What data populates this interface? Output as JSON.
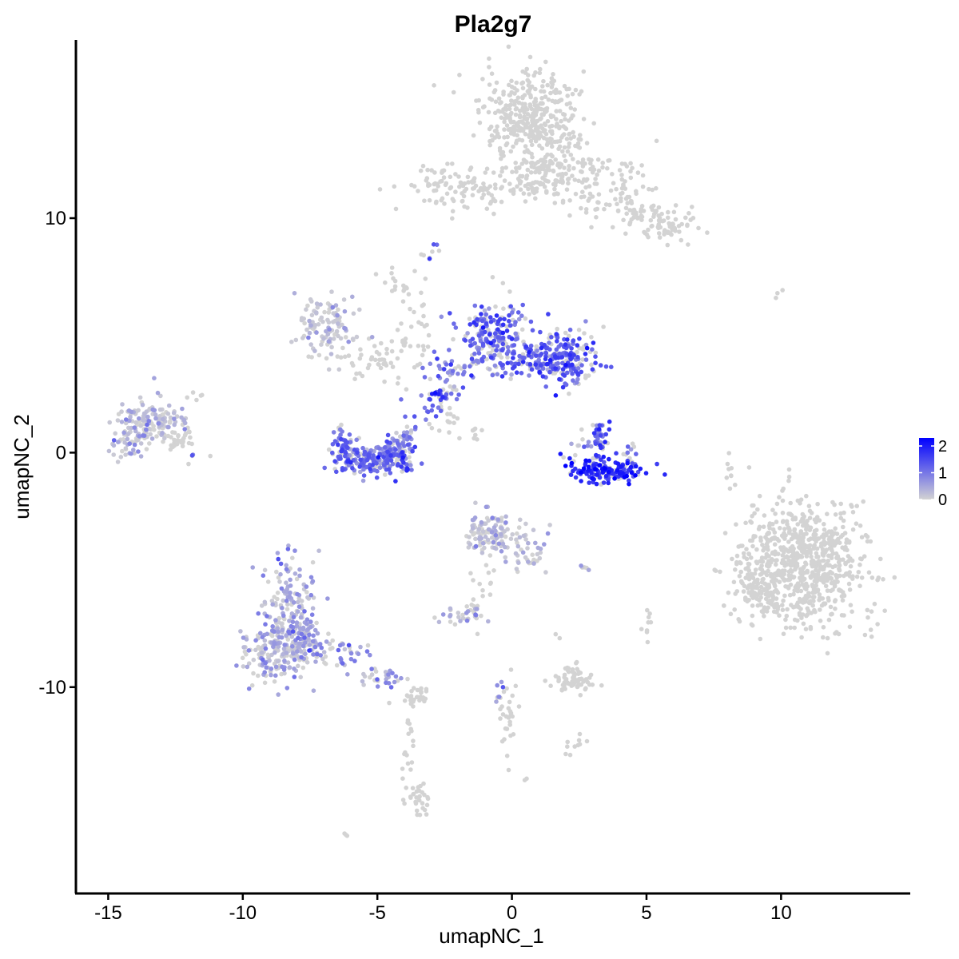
{
  "chart_data": {
    "type": "scatter",
    "title": "Pla2g7",
    "xlabel": "umapNC_1",
    "ylabel": "umapNC_2",
    "xlim": [
      -16.2,
      14.8
    ],
    "ylim": [
      -18.8,
      17.6
    ],
    "xticks": [
      -15,
      -10,
      -5,
      0,
      5,
      10
    ],
    "xtick_labels": [
      "-15",
      "-10",
      "-5",
      "0",
      "5",
      "10"
    ],
    "yticks": [
      -10,
      0,
      10
    ],
    "ytick_labels": [
      "-10",
      "0",
      "10"
    ],
    "grid": false,
    "legend": {
      "placement": "right",
      "type": "colorbar",
      "range": [
        0,
        2.3
      ],
      "ticks": [
        0,
        1,
        2
      ],
      "tick_labels": [
        "0",
        "1",
        "2"
      ],
      "low_color": "#d3d3d3",
      "high_color": "#0000ff"
    },
    "clusters": [
      {
        "cx": 0.7,
        "cy": 14.2,
        "sx": 0.9,
        "sy": 1.0,
        "n": 380,
        "expr": 0.0
      },
      {
        "cx": 2.4,
        "cy": 11.9,
        "sx": 1.2,
        "sy": 0.5,
        "n": 120,
        "expr": 0.0
      },
      {
        "cx": 4.3,
        "cy": 10.5,
        "sx": 1.1,
        "sy": 0.6,
        "n": 90,
        "expr": 0.0
      },
      {
        "cx": 5.8,
        "cy": 9.6,
        "sx": 0.4,
        "sy": 0.3,
        "n": 50,
        "expr": 0.0
      },
      {
        "cx": -2.0,
        "cy": 11.3,
        "sx": 1.0,
        "sy": 0.45,
        "n": 110,
        "expr": 0.0
      },
      {
        "cx": 0.8,
        "cy": 11.3,
        "sx": 0.8,
        "sy": 0.3,
        "n": 45,
        "expr": 0.0
      },
      {
        "cx": 0.9,
        "cy": 12.7,
        "sx": 0.3,
        "sy": 0.9,
        "n": 30,
        "expr": 0.0
      },
      {
        "cx": -2.9,
        "cy": 8.6,
        "sx": 0.15,
        "sy": 0.2,
        "n": 6,
        "expr": 1.7
      },
      {
        "cx": -6.8,
        "cy": 5.5,
        "sx": 0.55,
        "sy": 0.6,
        "n": 110,
        "expr": 0.1
      },
      {
        "cx": -5.0,
        "cy": 4.0,
        "sx": 1.0,
        "sy": 0.4,
        "n": 50,
        "expr": 0.0
      },
      {
        "cx": -3.6,
        "cy": 5.3,
        "sx": 0.4,
        "sy": 1.3,
        "n": 35,
        "expr": 0.0
      },
      {
        "cx": -4.4,
        "cy": 7.2,
        "sx": 0.25,
        "sy": 0.4,
        "n": 12,
        "expr": 0.0
      },
      {
        "cx": -0.7,
        "cy": 5.1,
        "sx": 0.65,
        "sy": 0.75,
        "n": 190,
        "expr": 1.2
      },
      {
        "cx": 0.8,
        "cy": 4.1,
        "sx": 0.9,
        "sy": 0.45,
        "n": 110,
        "expr": 1.2
      },
      {
        "cx": 2.1,
        "cy": 4.0,
        "sx": 0.6,
        "sy": 0.55,
        "n": 170,
        "expr": 1.3
      },
      {
        "cx": -2.1,
        "cy": 3.5,
        "sx": 0.55,
        "sy": 0.4,
        "n": 40,
        "expr": 1.0
      },
      {
        "cx": -2.6,
        "cy": 2.4,
        "sx": 0.3,
        "sy": 0.3,
        "n": 30,
        "expr": 1.3
      },
      {
        "cx": -3.2,
        "cy": 1.8,
        "sx": 0.4,
        "sy": 0.3,
        "n": 15,
        "expr": 1.0
      },
      {
        "cx": -2.2,
        "cy": 1.2,
        "sx": 0.35,
        "sy": 0.3,
        "n": 12,
        "expr": 0.0
      },
      {
        "cx": -1.4,
        "cy": 0.8,
        "sx": 0.25,
        "sy": 0.2,
        "n": 8,
        "expr": 0.0
      },
      {
        "cx": -6.2,
        "cy": 0.3,
        "sx": 0.25,
        "sy": 0.45,
        "n": 45,
        "expr": 1.3
      },
      {
        "cx": -5.4,
        "cy": -0.3,
        "sx": 0.7,
        "sy": 0.35,
        "n": 150,
        "expr": 1.1
      },
      {
        "cx": -4.3,
        "cy": 0.0,
        "sx": 0.35,
        "sy": 0.4,
        "n": 90,
        "expr": 1.1
      },
      {
        "cx": -3.9,
        "cy": 0.7,
        "sx": 0.2,
        "sy": 0.3,
        "n": 20,
        "expr": 0.8
      },
      {
        "cx": 3.6,
        "cy": -0.8,
        "sx": 0.55,
        "sy": 0.25,
        "n": 140,
        "expr": 1.8
      },
      {
        "cx": 2.6,
        "cy": -0.6,
        "sx": 0.3,
        "sy": 0.2,
        "n": 20,
        "expr": 2.0
      },
      {
        "cx": 3.3,
        "cy": 0.7,
        "sx": 0.18,
        "sy": 0.45,
        "n": 40,
        "expr": 1.4
      },
      {
        "cx": 2.6,
        "cy": 0.3,
        "sx": 0.25,
        "sy": 0.25,
        "n": 10,
        "expr": 0.8
      },
      {
        "cx": 4.4,
        "cy": 0.1,
        "sx": 0.15,
        "sy": 0.3,
        "n": 8,
        "expr": 1.0
      },
      {
        "cx": 2.0,
        "cy": -0.2,
        "sx": 0.15,
        "sy": 0.1,
        "n": 4,
        "expr": 1.8
      },
      {
        "cx": -13.4,
        "cy": 1.4,
        "sx": 0.6,
        "sy": 0.45,
        "n": 130,
        "expr": 0.2
      },
      {
        "cx": -14.2,
        "cy": 0.4,
        "sx": 0.35,
        "sy": 0.4,
        "n": 50,
        "expr": 0.3
      },
      {
        "cx": -12.4,
        "cy": 0.5,
        "sx": 0.35,
        "sy": 0.35,
        "n": 35,
        "expr": 0.0
      },
      {
        "cx": -11.9,
        "cy": -0.1,
        "sx": 0.05,
        "sy": 0.05,
        "n": 3,
        "expr": 1.0
      },
      {
        "cx": -11.7,
        "cy": 2.5,
        "sx": 0.2,
        "sy": 0.15,
        "n": 5,
        "expr": 0.0
      },
      {
        "cx": 10.8,
        "cy": -4.8,
        "sx": 1.25,
        "sy": 1.35,
        "n": 750,
        "expr": 0.0
      },
      {
        "cx": 9.0,
        "cy": -5.8,
        "sx": 0.45,
        "sy": 0.6,
        "n": 80,
        "expr": 0.0
      },
      {
        "cx": 8.1,
        "cy": -0.8,
        "sx": 0.1,
        "sy": 0.5,
        "n": 8,
        "expr": 0.0
      },
      {
        "cx": 9.8,
        "cy": 6.8,
        "sx": 0.2,
        "sy": 0.1,
        "n": 3,
        "expr": 0.0
      },
      {
        "cx": -0.7,
        "cy": -3.5,
        "sx": 0.5,
        "sy": 0.5,
        "n": 110,
        "expr": 0.2
      },
      {
        "cx": 0.6,
        "cy": -4.3,
        "sx": 0.4,
        "sy": 0.55,
        "n": 35,
        "expr": 0.2
      },
      {
        "cx": -1.1,
        "cy": -5.5,
        "sx": 0.3,
        "sy": 0.9,
        "n": 20,
        "expr": 0.0
      },
      {
        "cx": -1.9,
        "cy": -7.0,
        "sx": 0.45,
        "sy": 0.2,
        "n": 30,
        "expr": 0.4
      },
      {
        "cx": 2.8,
        "cy": -4.9,
        "sx": 0.2,
        "sy": 0.1,
        "n": 5,
        "expr": 0.3
      },
      {
        "cx": 5.0,
        "cy": -7.5,
        "sx": 0.1,
        "sy": 0.3,
        "n": 6,
        "expr": 0.0
      },
      {
        "cx": -8.2,
        "cy": -7.0,
        "sx": 0.55,
        "sy": 1.2,
        "n": 220,
        "expr": 0.4
      },
      {
        "cx": -9.1,
        "cy": -8.6,
        "sx": 0.55,
        "sy": 0.55,
        "n": 110,
        "expr": 0.3
      },
      {
        "cx": -7.8,
        "cy": -8.0,
        "sx": 0.45,
        "sy": 0.5,
        "n": 70,
        "expr": 0.3
      },
      {
        "cx": -6.2,
        "cy": -8.6,
        "sx": 0.65,
        "sy": 0.35,
        "n": 35,
        "expr": 0.6
      },
      {
        "cx": -4.7,
        "cy": -9.6,
        "sx": 0.55,
        "sy": 0.25,
        "n": 30,
        "expr": 0.5
      },
      {
        "cx": -3.6,
        "cy": -10.3,
        "sx": 0.3,
        "sy": 0.2,
        "n": 25,
        "expr": 0.0
      },
      {
        "cx": -3.8,
        "cy": -12.2,
        "sx": 0.12,
        "sy": 1.2,
        "n": 20,
        "expr": 0.0
      },
      {
        "cx": -3.4,
        "cy": -14.8,
        "sx": 0.3,
        "sy": 0.5,
        "n": 30,
        "expr": 0.0
      },
      {
        "cx": -6.1,
        "cy": -16.3,
        "sx": 0.08,
        "sy": 0.05,
        "n": 3,
        "expr": 0.0
      },
      {
        "cx": 2.3,
        "cy": -9.8,
        "sx": 0.45,
        "sy": 0.2,
        "n": 60,
        "expr": 0.0
      },
      {
        "cx": 2.1,
        "cy": -9.2,
        "sx": 0.25,
        "sy": 0.15,
        "n": 10,
        "expr": 0.0
      },
      {
        "cx": -0.1,
        "cy": -11.4,
        "sx": 0.2,
        "sy": 0.9,
        "n": 28,
        "expr": 0.0
      },
      {
        "cx": -0.5,
        "cy": -10.1,
        "sx": 0.1,
        "sy": 0.4,
        "n": 8,
        "expr": 0.7
      },
      {
        "cx": 2.4,
        "cy": -12.4,
        "sx": 0.2,
        "sy": 0.25,
        "n": 10,
        "expr": 0.0
      },
      {
        "cx": 0.5,
        "cy": -14.0,
        "sx": 0.05,
        "sy": 0.05,
        "n": 2,
        "expr": 0.0
      },
      {
        "cx": 5.1,
        "cy": -7.1,
        "sx": 0.05,
        "sy": 0.2,
        "n": 3,
        "expr": 0.0
      },
      {
        "cx": 1.7,
        "cy": -7.8,
        "sx": 0.05,
        "sy": 0.05,
        "n": 2,
        "expr": 0.0
      }
    ]
  }
}
